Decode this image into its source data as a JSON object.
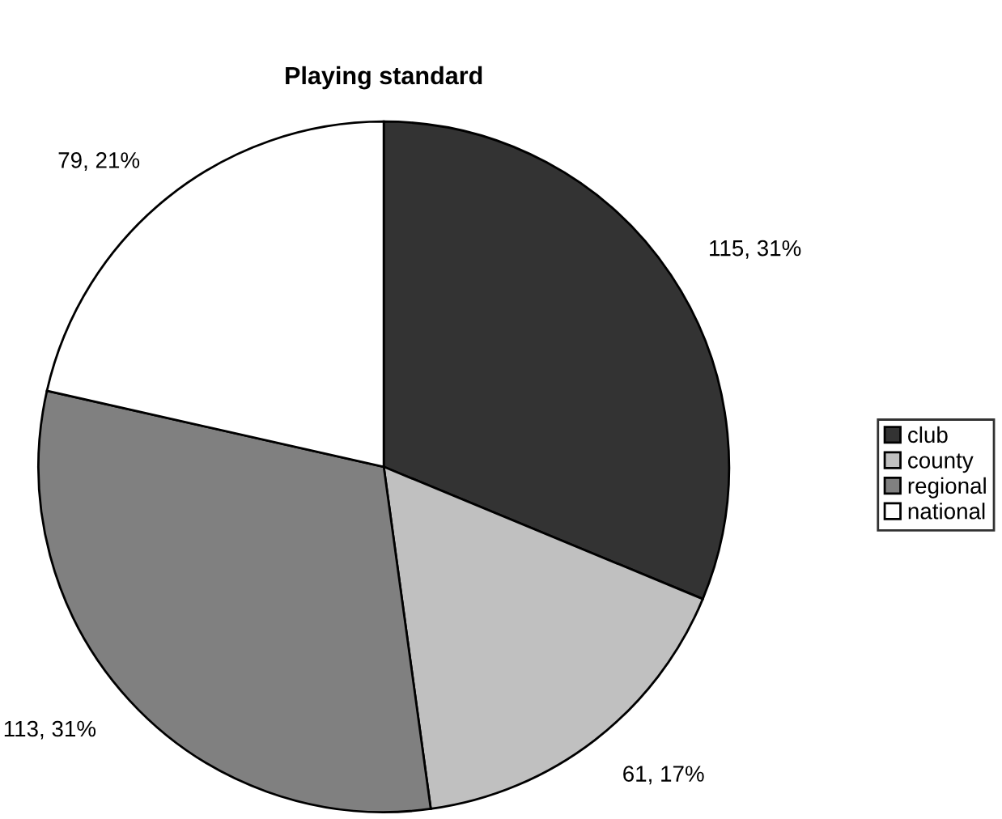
{
  "chart_data": {
    "type": "pie",
    "title": "Playing standard",
    "categories": [
      "club",
      "county",
      "regional",
      "national"
    ],
    "values": [
      115,
      61,
      113,
      79
    ],
    "colors": [
      "#333333",
      "#c0c0c0",
      "#808080",
      "#ffffff"
    ],
    "value_labels": [
      "115, 31%",
      "61, 17%",
      "113, 31%",
      "79, 21%"
    ],
    "legend": "right"
  }
}
